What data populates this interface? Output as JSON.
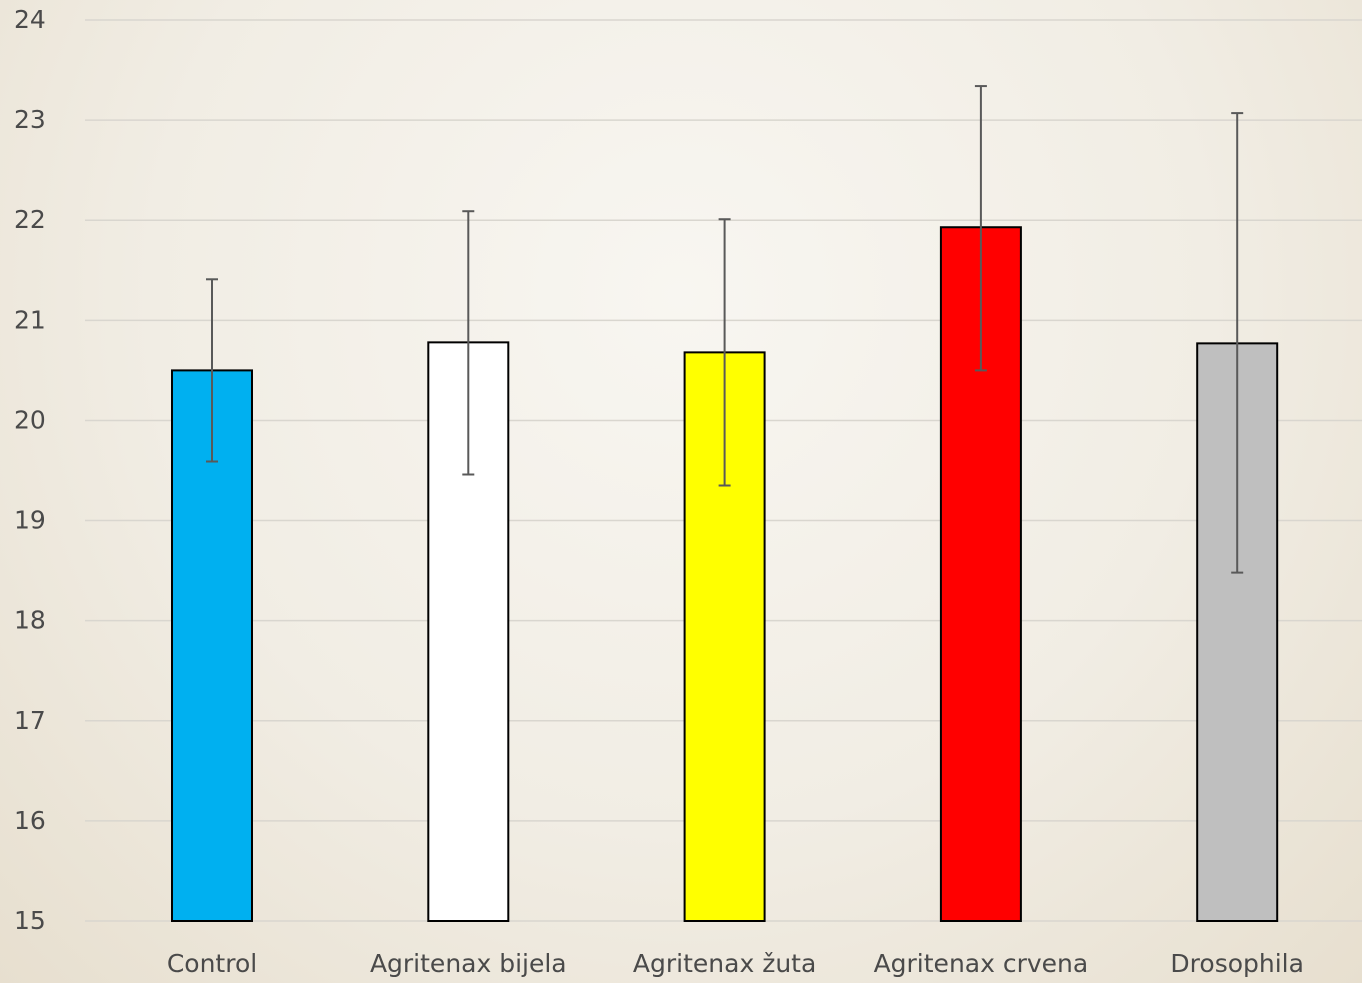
{
  "chart_data": {
    "type": "bar",
    "title": "",
    "xlabel": "",
    "ylabel": "",
    "ylim": [
      15,
      24
    ],
    "yticks": [
      "15",
      "16",
      "17",
      "18",
      "19",
      "20",
      "21",
      "22",
      "23",
      "24"
    ],
    "grid": true,
    "legend": "none",
    "categories": [
      "Control",
      "Agritenax bijela",
      "Agritenax žuta",
      "Agritenax crvena",
      "Drosophila"
    ],
    "values": [
      20.5,
      20.78,
      20.68,
      21.93,
      20.77
    ],
    "error_low": [
      19.59,
      19.46,
      19.35,
      20.5,
      18.48
    ],
    "error_high": [
      21.41,
      22.09,
      22.01,
      23.34,
      23.07
    ],
    "colors": [
      "#00b0f0",
      "#ffffff",
      "#ffff00",
      "#ff0000",
      "#bfbfbf"
    ],
    "bar_outline_color": "#000000",
    "error_bar_color": "#595959",
    "grid_color": "#d9d6cf"
  }
}
